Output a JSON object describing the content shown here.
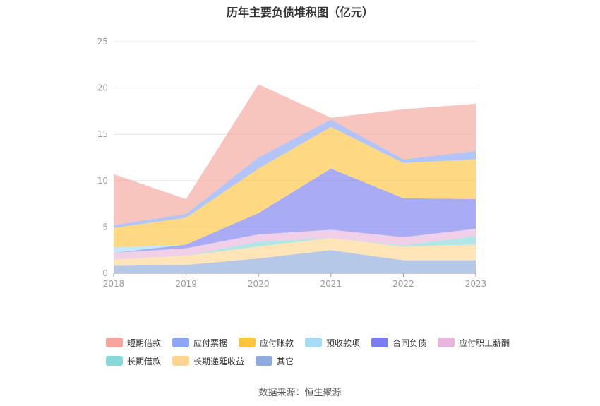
{
  "chart_data": {
    "type": "area",
    "stacked": true,
    "title": "历年主要负债堆积图（亿元）",
    "x": [
      "2018",
      "2019",
      "2020",
      "2021",
      "2022",
      "2023"
    ],
    "ylim": [
      0,
      25
    ],
    "yticks": [
      0,
      5,
      10,
      15,
      20,
      25
    ],
    "grid": true,
    "legend_position": "bottom",
    "series": [
      {
        "name": "其它",
        "values": [
          0.8,
          0.9,
          1.6,
          2.5,
          1.4,
          1.4
        ],
        "color": "#8faadc"
      },
      {
        "name": "长期递延收益",
        "values": [
          0.7,
          1.0,
          1.3,
          1.3,
          1.5,
          1.7
        ],
        "color": "#ffd591"
      },
      {
        "name": "长期借款",
        "values": [
          0.0,
          0.0,
          0.5,
          0.0,
          0.1,
          0.9
        ],
        "color": "#87d9d9"
      },
      {
        "name": "应付职工薪酬",
        "values": [
          0.7,
          0.8,
          0.8,
          0.9,
          0.9,
          0.8
        ],
        "color": "#e8b6dc"
      },
      {
        "name": "合同负债",
        "values": [
          0.0,
          0.4,
          2.3,
          6.6,
          4.2,
          3.2
        ],
        "color": "#7b7ef0"
      },
      {
        "name": "预收款项",
        "values": [
          0.6,
          0.0,
          0.0,
          0.0,
          0.0,
          0.0
        ],
        "color": "#a5ddf7"
      },
      {
        "name": "应付账款",
        "values": [
          2.1,
          2.9,
          4.8,
          4.5,
          3.8,
          4.3
        ],
        "color": "#ffc53d"
      },
      {
        "name": "应付票据",
        "values": [
          0.3,
          0.4,
          1.2,
          0.8,
          0.4,
          0.9
        ],
        "color": "#8aa6f5"
      },
      {
        "name": "短期借款",
        "values": [
          5.5,
          1.6,
          7.9,
          0.2,
          5.4,
          5.1
        ],
        "color": "#f5a59b"
      }
    ],
    "legend_order": [
      "短期借款",
      "应付票据",
      "应付账款",
      "预收款项",
      "合同负债",
      "应付职工薪酬",
      "长期借款",
      "长期递延收益",
      "其它"
    ],
    "source": "数据来源：恒生聚源"
  }
}
